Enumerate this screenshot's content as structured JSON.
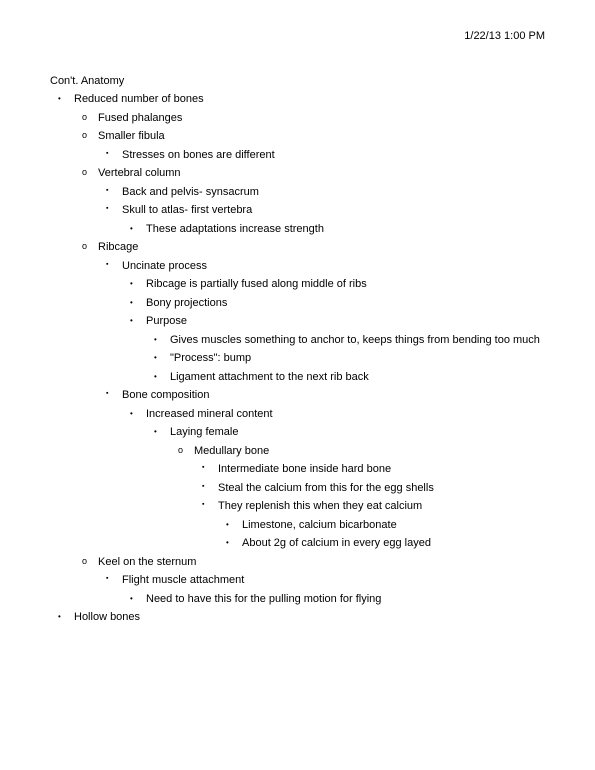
{
  "datetime": "1/22/13 1:00 PM",
  "title": "Con't. Anatomy",
  "outline": {
    "reduced_bones": "Reduced number of bones",
    "fused_phalanges": "Fused phalanges",
    "smaller_fibula": "Smaller fibula",
    "stresses": "Stresses on bones are different",
    "vertebral_column": "Vertebral column",
    "back_pelvis": "Back and pelvis- synsacrum",
    "skull_atlas": "Skull to atlas- first vertebra",
    "adaptations": "These adaptations increase strength",
    "ribcage": "Ribcage",
    "uncinate": "Uncinate process",
    "ribcage_fused": "Ribcage is partially fused along middle of ribs",
    "bony_proj": "Bony projections",
    "purpose": "Purpose",
    "anchor": "Gives muscles something to anchor to, keeps things from bending too much",
    "process_bump": "\"Process\": bump",
    "ligament": "Ligament attachment to the next rib back",
    "bone_comp": "Bone composition",
    "mineral": "Increased mineral content",
    "laying_female": "Laying female",
    "medullary": "Medullary bone",
    "intermediate": "Intermediate bone inside hard bone",
    "steal_calcium": "Steal the calcium from this for the egg shells",
    "replenish": "They replenish this when they eat calcium",
    "limestone": "Limestone, calcium bicarbonate",
    "about_2g": "About 2g of calcium in every egg layed",
    "keel": "Keel on the sternum",
    "flight_muscle": "Flight muscle attachment",
    "pulling": "Need to have this for the pulling motion for flying",
    "hollow": "Hollow bones"
  }
}
